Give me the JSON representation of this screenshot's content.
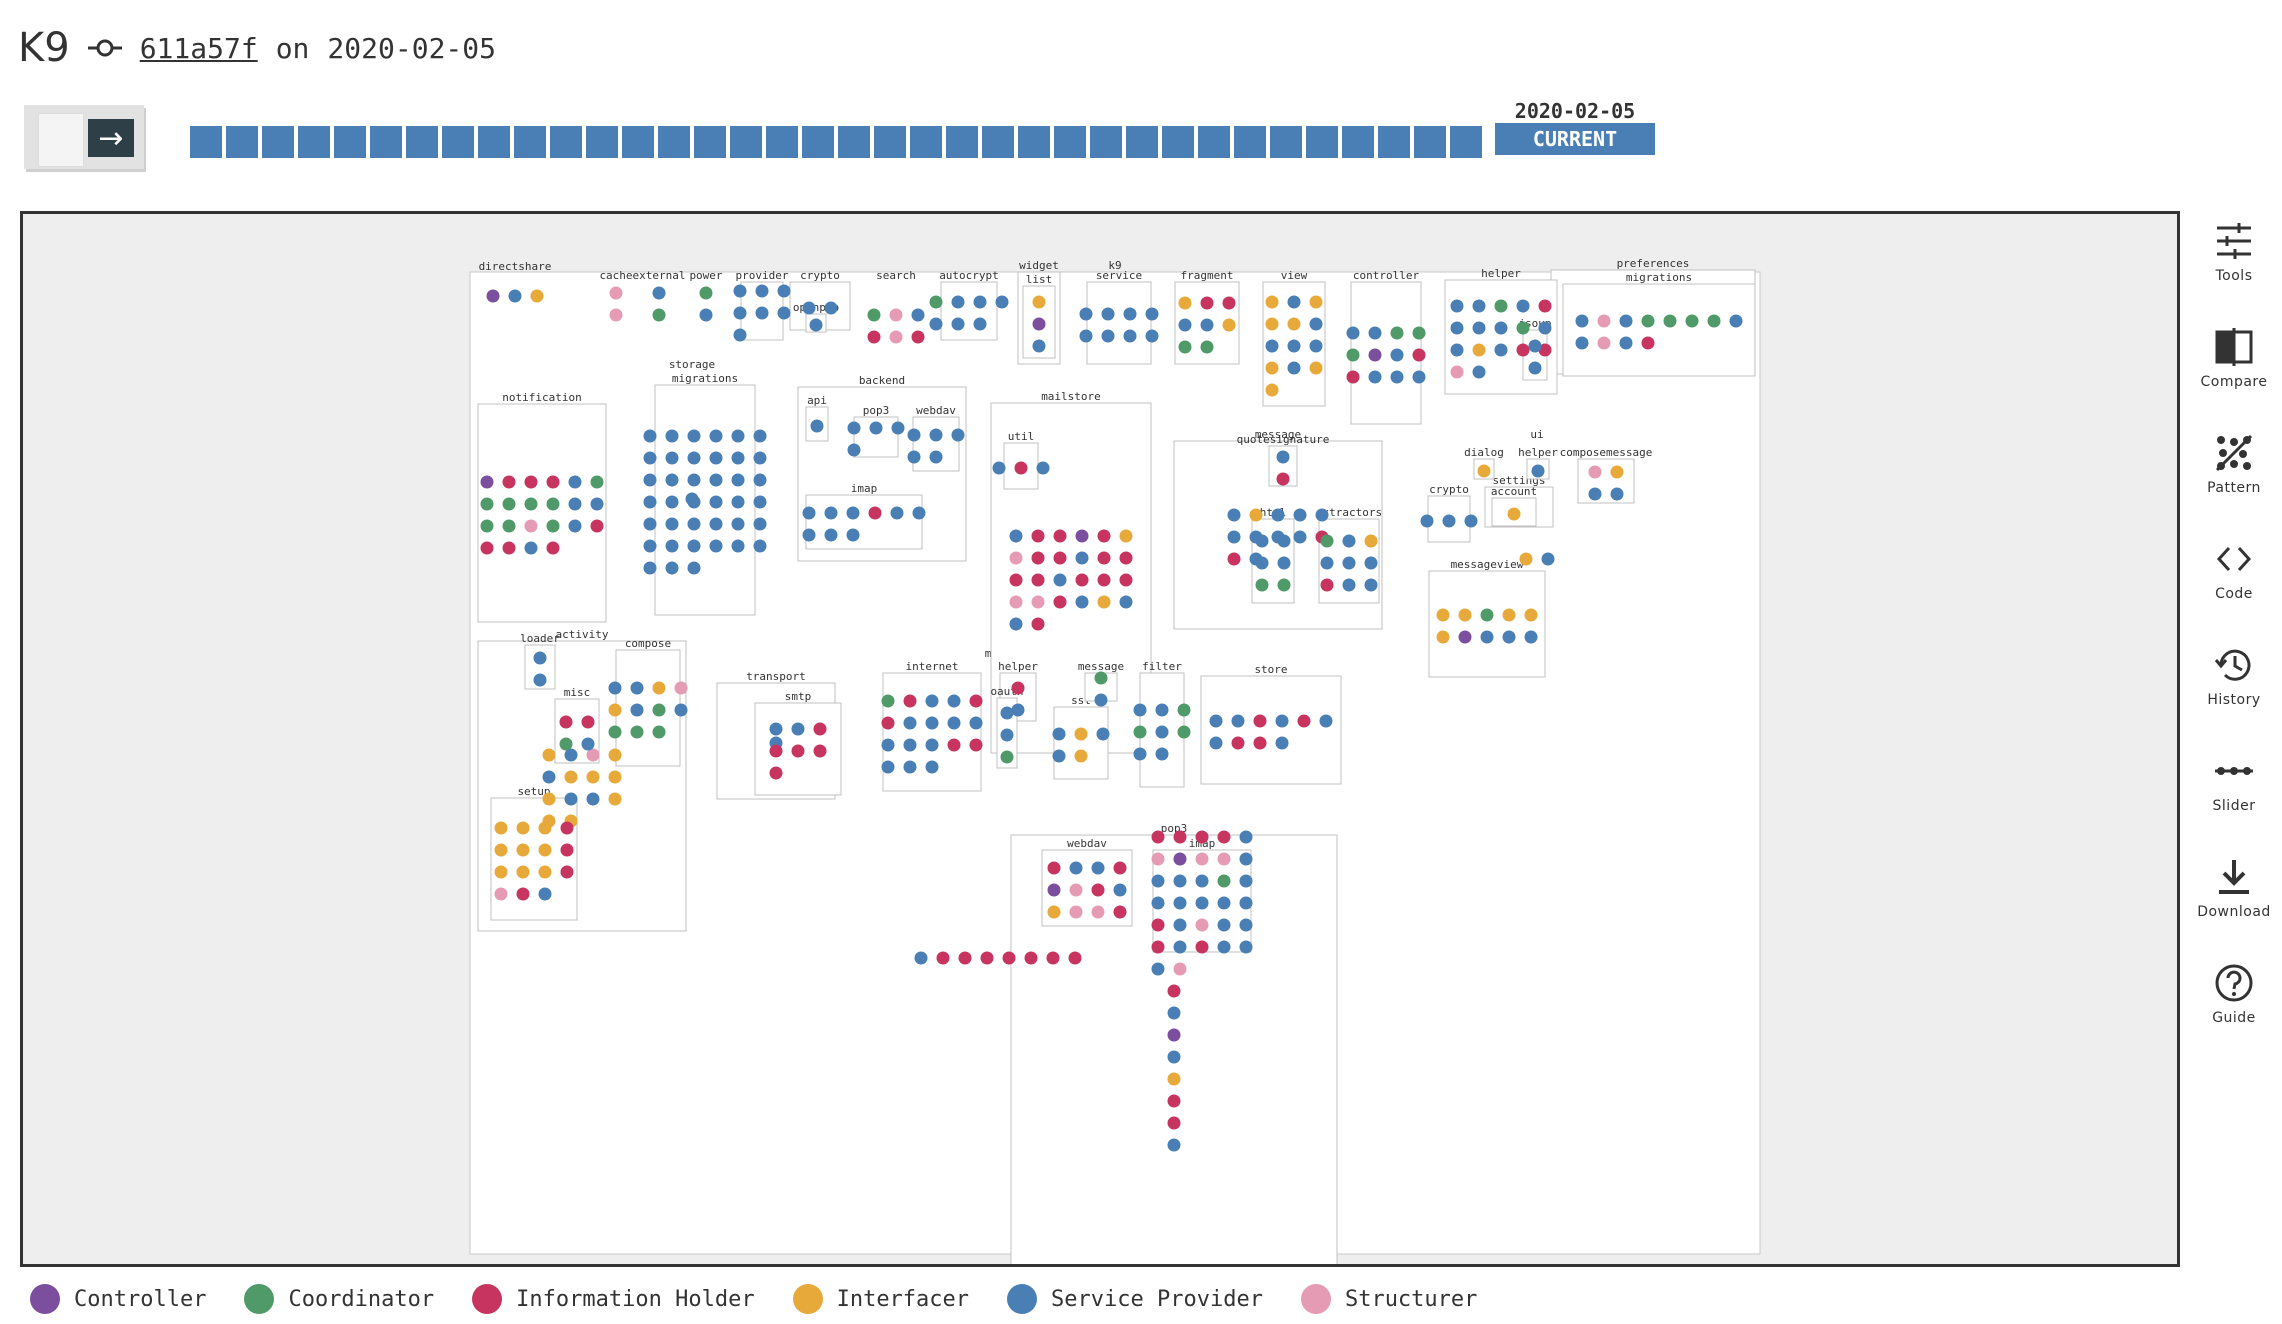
{
  "header": {
    "title": "K9",
    "commit_hash": "611a57f",
    "on_label": "on",
    "date": "2020-02-05"
  },
  "timeline": {
    "segments": 36,
    "current_date": "2020-02-05",
    "current_label": "CURRENT"
  },
  "toolbar": [
    {
      "label": "Tools",
      "icon": "sliders-icon"
    },
    {
      "label": "Compare",
      "icon": "compare-icon"
    },
    {
      "label": "Pattern",
      "icon": "pattern-icon"
    },
    {
      "label": "Code",
      "icon": "code-icon"
    },
    {
      "label": "History",
      "icon": "history-icon"
    },
    {
      "label": "Slider",
      "icon": "slider-icon"
    },
    {
      "label": "Download",
      "icon": "download-icon"
    },
    {
      "label": "Guide",
      "icon": "help-icon"
    }
  ],
  "legend": [
    {
      "key": "C",
      "label": "Controller",
      "color": "#7b4f9d"
    },
    {
      "key": "O",
      "label": "Coordinator",
      "color": "#4f9a68"
    },
    {
      "key": "I",
      "label": "Information Holder",
      "color": "#c6345f"
    },
    {
      "key": "F",
      "label": "Interfacer",
      "color": "#e8a93b"
    },
    {
      "key": "S",
      "label": "Service Provider",
      "color": "#4a7fb5"
    },
    {
      "key": "T",
      "label": "Structurer",
      "color": "#e59bb3"
    }
  ],
  "diagram": {
    "root_label": "k9",
    "packages": [
      {
        "label": "directshare",
        "dots": "CSF"
      },
      {
        "label": "cache",
        "dots": "TT"
      },
      {
        "label": "external",
        "dots": "SO"
      },
      {
        "label": "power",
        "dots": "OS"
      },
      {
        "label": "provider",
        "dots": "SSSSSSS"
      },
      {
        "label": "crypto",
        "dots": "SS"
      },
      {
        "label": "openpgp",
        "dots": "S"
      },
      {
        "label": "search",
        "dots": "OTSITI"
      },
      {
        "label": "autocrypt",
        "dots": "OSSSSSS"
      },
      {
        "label": "widget",
        "dots": ""
      },
      {
        "label": "list",
        "dots": "FCS"
      },
      {
        "label": "service",
        "dots": "SSSSSSSS"
      },
      {
        "label": "fragment",
        "dots": "FIISSFOO"
      },
      {
        "label": "view",
        "dots": "FSFFFSSSSFSFF"
      },
      {
        "label": "controller",
        "dots": "SSOOOCSIISSS"
      },
      {
        "label": "helper",
        "dots": "SSOSISSSOSSFSIITS"
      },
      {
        "label": "jsoup",
        "dots": "SS"
      },
      {
        "label": "preferences",
        "dots": ""
      },
      {
        "label": "migrations",
        "dots": "STSOOOOSSTSI"
      },
      {
        "label": "notification",
        "dots": "CIIISOOOOOSSOOTOSIIISI"
      },
      {
        "label": "storage",
        "dots": "S"
      },
      {
        "label": "migrations",
        "dots": "SSSSSSSSSSSSSSSSSSSSSSSSSSSSSSSSSSSSSSS"
      },
      {
        "label": "backend",
        "dots": ""
      },
      {
        "label": "api",
        "dots": "S"
      },
      {
        "label": "pop3",
        "dots": "SSSS"
      },
      {
        "label": "webdav",
        "dots": "SSSSS"
      },
      {
        "label": "imap",
        "dots": "SSSISSSSS"
      },
      {
        "label": "mailstore",
        "dots": "SIICIFTIISIIIISIIITTISFSSI"
      },
      {
        "label": "util",
        "dots": "SIS"
      },
      {
        "label": "message",
        "dots": "SFSSSSSSSIIS"
      },
      {
        "label": "quotesignature",
        "dots": "SI"
      },
      {
        "label": "html",
        "dots": "SSSSOO"
      },
      {
        "label": "extractors",
        "dots": "OSFSSSISS"
      },
      {
        "label": "ui",
        "dots": "FS"
      },
      {
        "label": "dialog",
        "dots": "F"
      },
      {
        "label": "helper",
        "dots": "S"
      },
      {
        "label": "composemessage",
        "dots": "TFSS"
      },
      {
        "label": "settings",
        "dots": ""
      },
      {
        "label": "account",
        "dots": "F"
      },
      {
        "label": "crypto",
        "dots": "SSS"
      },
      {
        "label": "messageview",
        "dots": "FFOFFFCSS S"
      },
      {
        "label": "activity",
        "dots": "FSTFSFFFFSSFFF"
      },
      {
        "label": "loader",
        "dots": "SS"
      },
      {
        "label": "misc",
        "dots": "IIOS"
      },
      {
        "label": "compose",
        "dots": "SSFTFSOSOOO"
      },
      {
        "label": "setup",
        "dots": "FFFIFFFIFFFITIS"
      },
      {
        "label": "mail",
        "dots": "SIIIIIII"
      },
      {
        "label": "transport",
        "dots": "S"
      },
      {
        "label": "smtp",
        "dots": "SSIIIII"
      },
      {
        "label": "internet",
        "dots": "OISSIISSSSSSSIISSS"
      },
      {
        "label": "helper",
        "dots": "IS"
      },
      {
        "label": "message",
        "dots": "OS"
      },
      {
        "label": "oauth",
        "dots": "SSO"
      },
      {
        "label": "ssl",
        "dots": "SFSSF"
      },
      {
        "label": "filter",
        "dots": "SSOOSOSS"
      },
      {
        "label": "store",
        "dots": "SSISISSIIS"
      },
      {
        "label": "pop3",
        "dots": "ISCSFIIS"
      },
      {
        "label": "webdav",
        "dots": "ISSICTISFTTI"
      },
      {
        "label": "imap",
        "dots": "IIIISTCTTSSSSOSSSSSSISTSSISISSST"
      }
    ]
  }
}
